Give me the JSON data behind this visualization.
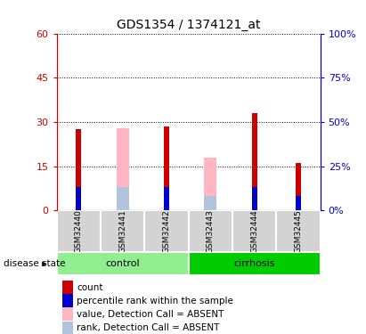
{
  "title": "GDS1354 / 1374121_at",
  "samples": [
    "GSM32440",
    "GSM32441",
    "GSM32442",
    "GSM32443",
    "GSM32444",
    "GSM32445"
  ],
  "groups": [
    {
      "name": "control",
      "indices": [
        0,
        1,
        2
      ],
      "color": "#90ee90"
    },
    {
      "name": "cirrhosis",
      "indices": [
        3,
        4,
        5
      ],
      "color": "#00cc00"
    }
  ],
  "left_ylim": [
    0,
    60
  ],
  "right_ylim": [
    0,
    100
  ],
  "left_yticks": [
    0,
    15,
    30,
    45,
    60
  ],
  "right_yticks": [
    0,
    25,
    50,
    75,
    100
  ],
  "left_ytick_labels": [
    "0",
    "15",
    "30",
    "45",
    "60"
  ],
  "right_ytick_labels": [
    "0%",
    "25%",
    "50%",
    "75%",
    "100%"
  ],
  "left_axis_color": "#cc0000",
  "right_axis_color": "#0000cc",
  "count_color": "#cc0000",
  "percentile_color": "#0000cc",
  "absent_value_color": "#ffb6c1",
  "absent_rank_color": "#b0c4de",
  "count_values": [
    27.5,
    0,
    28.5,
    0,
    33,
    16
  ],
  "percentile_values": [
    8,
    0,
    8,
    0,
    8,
    5
  ],
  "absent_value_values": [
    0,
    28,
    0,
    18,
    0,
    0
  ],
  "absent_rank_values": [
    0,
    8,
    0,
    5,
    0,
    0
  ],
  "grid_linestyle": "dotted",
  "background_color": "#ffffff",
  "plot_bg_color": "#ffffff",
  "label_area_color": "#d3d3d3",
  "disease_state_label": "disease state",
  "legend_items": [
    {
      "label": "count",
      "color": "#cc0000"
    },
    {
      "label": "percentile rank within the sample",
      "color": "#0000cc"
    },
    {
      "label": "value, Detection Call = ABSENT",
      "color": "#ffb6c1"
    },
    {
      "label": "rank, Detection Call = ABSENT",
      "color": "#b0c4de"
    }
  ]
}
